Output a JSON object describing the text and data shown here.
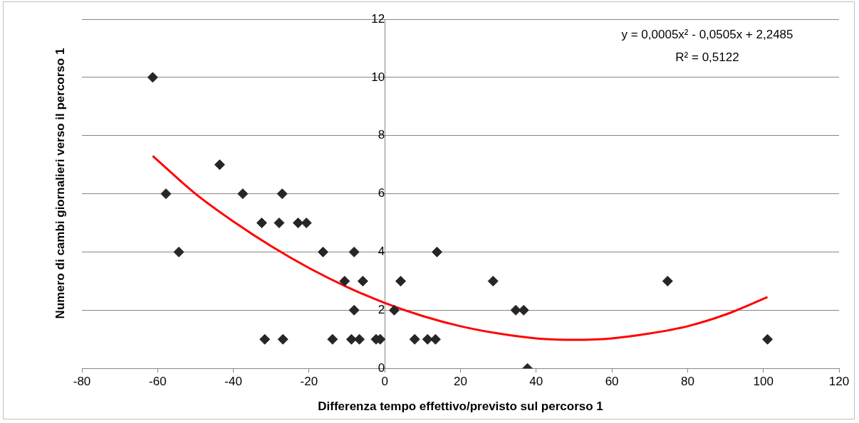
{
  "chart_data": {
    "type": "scatter",
    "xlabel": "Differenza tempo effettivo/previsto sul percorso 1",
    "ylabel": "Numero di cambi giornalieri verso il percorso 1",
    "annotations": [
      "y = 0,0005x² - 0,0505x + 2,2485",
      "R² = 0,5122"
    ],
    "xlim": [
      -80,
      120
    ],
    "xticks": [
      -80,
      -60,
      -40,
      -20,
      0,
      20,
      40,
      60,
      80,
      100,
      120
    ],
    "ylim": [
      0,
      12
    ],
    "yticks": [
      0,
      2,
      4,
      6,
      8,
      10,
      12
    ],
    "grid": "y",
    "legend": false,
    "marker": "diamond",
    "series": [
      {
        "color": "#262626",
        "x": [
          -61.3,
          -57.8,
          -54.4,
          -43.6,
          -37.5,
          -32.5,
          -31.7,
          -27.1,
          -27.9,
          -26.9,
          -22.9,
          -20.7,
          -16.3,
          -13.8,
          -10.6,
          -8.1,
          -8.1,
          -8.8,
          -6.7,
          -5.8,
          -2.3,
          -1.2,
          2.5,
          4.2,
          7.9,
          11.3,
          13.4,
          13.8,
          28.6,
          34.6,
          36.7,
          37.7,
          74.7,
          101.1
        ],
        "values": [
          10,
          6,
          4,
          7,
          6,
          5,
          1,
          6,
          5,
          1,
          5,
          5,
          4,
          1,
          3,
          4,
          2,
          1,
          1,
          3,
          1,
          1,
          2,
          3,
          1,
          1,
          1,
          4,
          3,
          2,
          2,
          0,
          3,
          1
        ]
      },
      {
        "type": "line",
        "color": "#ff0000",
        "marker": "none",
        "x": [
          -61.3,
          -50,
          -40,
          -30,
          -20,
          -10,
          0,
          10,
          20,
          30,
          40,
          50,
          60,
          70,
          80,
          90,
          101.1
        ],
        "values": [
          7.3,
          6.0,
          5.05,
          4.2,
          3.45,
          2.8,
          2.25,
          1.8,
          1.45,
          1.2,
          1.03,
          0.98,
          1.03,
          1.2,
          1.45,
          1.85,
          2.45
        ]
      }
    ]
  }
}
